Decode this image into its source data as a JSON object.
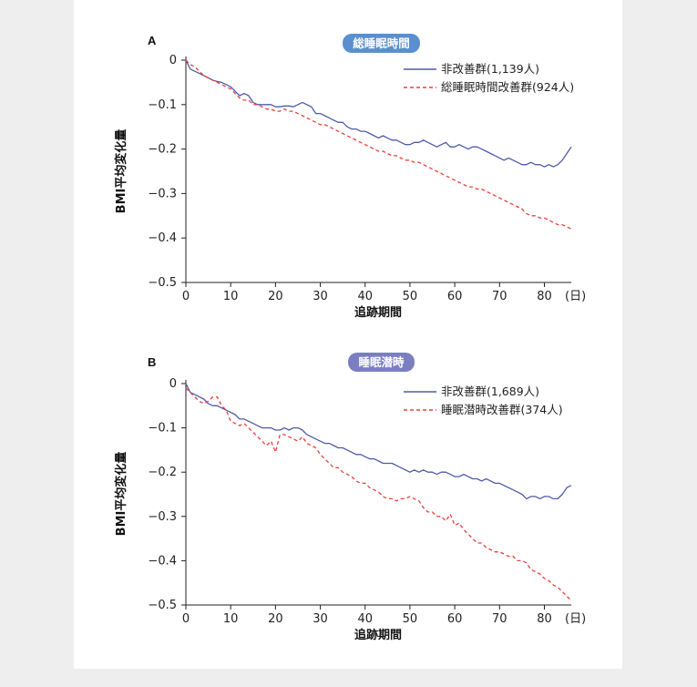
{
  "colors": {
    "series1": "#4e5ba6",
    "series2": "#e8403c",
    "badge": "#5a8fd0",
    "badge_b": "#7b7fc2"
  },
  "chart_data": [
    {
      "panel": "A",
      "badge": "総睡眠時間",
      "type": "line",
      "xlabel": "追跡期間",
      "ylabel": "BMI平均変化量",
      "x_unit": "(日)",
      "xlim": [
        0,
        86
      ],
      "ylim": [
        -0.5,
        0
      ],
      "xticks": [
        0,
        10,
        20,
        30,
        40,
        50,
        60,
        70,
        80
      ],
      "yticks": [
        0,
        -0.1,
        -0.2,
        -0.3,
        -0.4,
        -0.5
      ],
      "ytick_labels": [
        "0",
        "−0.1",
        "−0.2",
        "−0.3",
        "−0.4",
        "−0.5"
      ],
      "legend_position": "top-right",
      "series": [
        {
          "name": "非改善群(1,139人)",
          "style": "solid",
          "x": [
            0,
            1,
            2,
            3,
            4,
            5,
            6,
            7,
            8,
            9,
            10,
            11,
            12,
            13,
            14,
            15,
            16,
            17,
            18,
            19,
            20,
            21,
            22,
            23,
            24,
            25,
            26,
            27,
            28,
            29,
            30,
            31,
            32,
            33,
            34,
            35,
            36,
            37,
            38,
            39,
            40,
            41,
            42,
            43,
            44,
            45,
            46,
            47,
            48,
            49,
            50,
            51,
            52,
            53,
            54,
            55,
            56,
            57,
            58,
            59,
            60,
            61,
            62,
            63,
            64,
            65,
            66,
            67,
            68,
            69,
            70,
            71,
            72,
            73,
            74,
            75,
            76,
            77,
            78,
            79,
            80,
            81,
            82,
            83,
            84,
            85,
            86
          ],
          "y": [
            0,
            -0.02,
            -0.025,
            -0.03,
            -0.035,
            -0.04,
            -0.045,
            -0.048,
            -0.05,
            -0.055,
            -0.06,
            -0.07,
            -0.08,
            -0.075,
            -0.08,
            -0.095,
            -0.1,
            -0.1,
            -0.1,
            -0.1,
            -0.105,
            -0.105,
            -0.103,
            -0.103,
            -0.105,
            -0.1,
            -0.095,
            -0.1,
            -0.105,
            -0.12,
            -0.12,
            -0.125,
            -0.13,
            -0.135,
            -0.14,
            -0.14,
            -0.15,
            -0.155,
            -0.155,
            -0.16,
            -0.16,
            -0.165,
            -0.17,
            -0.175,
            -0.17,
            -0.175,
            -0.18,
            -0.18,
            -0.185,
            -0.19,
            -0.19,
            -0.185,
            -0.185,
            -0.18,
            -0.185,
            -0.19,
            -0.195,
            -0.19,
            -0.185,
            -0.195,
            -0.195,
            -0.19,
            -0.195,
            -0.2,
            -0.195,
            -0.195,
            -0.2,
            -0.205,
            -0.21,
            -0.215,
            -0.22,
            -0.225,
            -0.22,
            -0.225,
            -0.23,
            -0.235,
            -0.235,
            -0.23,
            -0.235,
            -0.235,
            -0.24,
            -0.235,
            -0.24,
            -0.235,
            -0.225,
            -0.21,
            -0.195
          ]
        },
        {
          "name": "総睡眠時間改善群(924人)",
          "style": "dashed",
          "x": [
            0,
            1,
            2,
            3,
            4,
            5,
            6,
            7,
            8,
            9,
            10,
            11,
            12,
            13,
            14,
            15,
            16,
            17,
            18,
            19,
            20,
            21,
            22,
            23,
            24,
            25,
            26,
            27,
            28,
            29,
            30,
            31,
            32,
            33,
            34,
            35,
            36,
            37,
            38,
            39,
            40,
            41,
            42,
            43,
            44,
            45,
            46,
            47,
            48,
            49,
            50,
            51,
            52,
            53,
            54,
            55,
            56,
            57,
            58,
            59,
            60,
            61,
            62,
            63,
            64,
            65,
            66,
            67,
            68,
            69,
            70,
            71,
            72,
            73,
            74,
            75,
            76,
            77,
            78,
            79,
            80,
            81,
            82,
            83,
            84,
            85,
            86
          ],
          "y": [
            0,
            -0.01,
            -0.015,
            -0.025,
            -0.035,
            -0.04,
            -0.045,
            -0.05,
            -0.055,
            -0.06,
            -0.065,
            -0.075,
            -0.085,
            -0.09,
            -0.09,
            -0.1,
            -0.1,
            -0.105,
            -0.11,
            -0.11,
            -0.115,
            -0.115,
            -0.11,
            -0.115,
            -0.115,
            -0.12,
            -0.125,
            -0.13,
            -0.135,
            -0.14,
            -0.145,
            -0.145,
            -0.15,
            -0.155,
            -0.16,
            -0.165,
            -0.17,
            -0.175,
            -0.18,
            -0.185,
            -0.19,
            -0.195,
            -0.2,
            -0.205,
            -0.205,
            -0.21,
            -0.215,
            -0.215,
            -0.22,
            -0.225,
            -0.225,
            -0.23,
            -0.23,
            -0.235,
            -0.24,
            -0.245,
            -0.25,
            -0.255,
            -0.26,
            -0.265,
            -0.27,
            -0.275,
            -0.28,
            -0.285,
            -0.285,
            -0.29,
            -0.29,
            -0.295,
            -0.3,
            -0.305,
            -0.31,
            -0.315,
            -0.32,
            -0.325,
            -0.33,
            -0.335,
            -0.345,
            -0.35,
            -0.35,
            -0.355,
            -0.355,
            -0.36,
            -0.365,
            -0.37,
            -0.37,
            -0.375,
            -0.38
          ]
        }
      ]
    },
    {
      "panel": "B",
      "badge": "睡眠潜時",
      "type": "line",
      "xlabel": "追跡期間",
      "ylabel": "BMI平均変化量",
      "x_unit": "(日)",
      "xlim": [
        0,
        86
      ],
      "ylim": [
        -0.5,
        0
      ],
      "xticks": [
        0,
        10,
        20,
        30,
        40,
        50,
        60,
        70,
        80
      ],
      "yticks": [
        0,
        -0.1,
        -0.2,
        -0.3,
        -0.4,
        -0.5
      ],
      "ytick_labels": [
        "0",
        "−0.1",
        "−0.2",
        "−0.3",
        "−0.4",
        "−0.5"
      ],
      "legend_position": "top-right",
      "series": [
        {
          "name": "非改善群(1,689人)",
          "style": "solid",
          "x": [
            0,
            1,
            2,
            3,
            4,
            5,
            6,
            7,
            8,
            9,
            10,
            11,
            12,
            13,
            14,
            15,
            16,
            17,
            18,
            19,
            20,
            21,
            22,
            23,
            24,
            25,
            26,
            27,
            28,
            29,
            30,
            31,
            32,
            33,
            34,
            35,
            36,
            37,
            38,
            39,
            40,
            41,
            42,
            43,
            44,
            45,
            46,
            47,
            48,
            49,
            50,
            51,
            52,
            53,
            54,
            55,
            56,
            57,
            58,
            59,
            60,
            61,
            62,
            63,
            64,
            65,
            66,
            67,
            68,
            69,
            70,
            71,
            72,
            73,
            74,
            75,
            76,
            77,
            78,
            79,
            80,
            81,
            82,
            83,
            84,
            85,
            86
          ],
          "y": [
            0,
            -0.02,
            -0.025,
            -0.03,
            -0.035,
            -0.045,
            -0.05,
            -0.05,
            -0.055,
            -0.06,
            -0.065,
            -0.07,
            -0.08,
            -0.08,
            -0.085,
            -0.09,
            -0.095,
            -0.1,
            -0.1,
            -0.1,
            -0.105,
            -0.105,
            -0.1,
            -0.105,
            -0.1,
            -0.1,
            -0.105,
            -0.115,
            -0.12,
            -0.125,
            -0.13,
            -0.135,
            -0.135,
            -0.14,
            -0.145,
            -0.145,
            -0.15,
            -0.155,
            -0.16,
            -0.16,
            -0.165,
            -0.17,
            -0.17,
            -0.175,
            -0.18,
            -0.18,
            -0.18,
            -0.185,
            -0.19,
            -0.195,
            -0.2,
            -0.195,
            -0.2,
            -0.195,
            -0.2,
            -0.2,
            -0.205,
            -0.2,
            -0.2,
            -0.205,
            -0.21,
            -0.21,
            -0.205,
            -0.21,
            -0.215,
            -0.215,
            -0.22,
            -0.215,
            -0.22,
            -0.225,
            -0.225,
            -0.23,
            -0.235,
            -0.24,
            -0.245,
            -0.25,
            -0.26,
            -0.255,
            -0.255,
            -0.26,
            -0.255,
            -0.255,
            -0.26,
            -0.26,
            -0.25,
            -0.235,
            -0.23
          ]
        },
        {
          "name": "睡眠潜時改善群(374人)",
          "style": "dashed",
          "x": [
            0,
            1,
            2,
            3,
            4,
            5,
            6,
            7,
            8,
            9,
            10,
            11,
            12,
            13,
            14,
            15,
            16,
            17,
            18,
            19,
            20,
            21,
            22,
            23,
            24,
            25,
            26,
            27,
            28,
            29,
            30,
            31,
            32,
            33,
            34,
            35,
            36,
            37,
            38,
            39,
            40,
            41,
            42,
            43,
            44,
            45,
            46,
            47,
            48,
            49,
            50,
            51,
            52,
            53,
            54,
            55,
            56,
            57,
            58,
            59,
            60,
            61,
            62,
            63,
            64,
            65,
            66,
            67,
            68,
            69,
            70,
            71,
            72,
            73,
            74,
            75,
            76,
            77,
            78,
            79,
            80,
            81,
            82,
            83,
            84,
            85,
            86
          ],
          "y": [
            -0.01,
            -0.02,
            -0.03,
            -0.04,
            -0.045,
            -0.04,
            -0.03,
            -0.03,
            -0.05,
            -0.06,
            -0.085,
            -0.09,
            -0.095,
            -0.09,
            -0.1,
            -0.11,
            -0.12,
            -0.13,
            -0.14,
            -0.13,
            -0.155,
            -0.115,
            -0.115,
            -0.12,
            -0.125,
            -0.13,
            -0.12,
            -0.135,
            -0.14,
            -0.145,
            -0.16,
            -0.17,
            -0.18,
            -0.19,
            -0.19,
            -0.2,
            -0.205,
            -0.21,
            -0.22,
            -0.225,
            -0.225,
            -0.235,
            -0.24,
            -0.245,
            -0.255,
            -0.26,
            -0.26,
            -0.265,
            -0.26,
            -0.26,
            -0.255,
            -0.26,
            -0.265,
            -0.28,
            -0.29,
            -0.29,
            -0.3,
            -0.3,
            -0.31,
            -0.295,
            -0.32,
            -0.315,
            -0.33,
            -0.34,
            -0.35,
            -0.36,
            -0.36,
            -0.37,
            -0.375,
            -0.38,
            -0.38,
            -0.385,
            -0.39,
            -0.39,
            -0.4,
            -0.4,
            -0.405,
            -0.42,
            -0.425,
            -0.43,
            -0.44,
            -0.445,
            -0.455,
            -0.46,
            -0.47,
            -0.48,
            -0.49
          ]
        }
      ]
    }
  ]
}
